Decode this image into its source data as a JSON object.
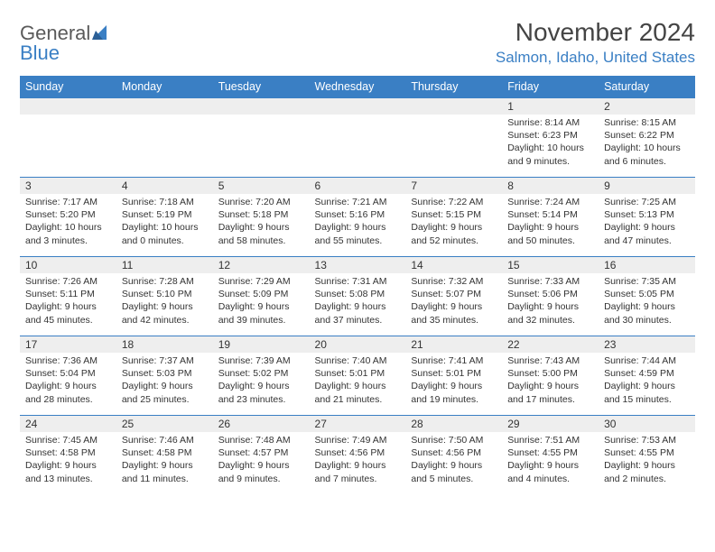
{
  "logo": {
    "word1": "General",
    "word2": "Blue"
  },
  "title": "November 2024",
  "location": "Salmon, Idaho, United States",
  "colors": {
    "header_bg": "#3a7fc4",
    "header_text": "#ffffff",
    "daynum_bg": "#eeeeee",
    "row_border": "#3a7fc4",
    "location_color": "#3a7fc4",
    "text": "#333333",
    "page_bg": "#ffffff"
  },
  "typography": {
    "title_fontsize": 28,
    "location_fontsize": 17,
    "dayheader_fontsize": 12.5,
    "daynum_fontsize": 12,
    "body_fontsize": 10.5
  },
  "day_headers": [
    "Sunday",
    "Monday",
    "Tuesday",
    "Wednesday",
    "Thursday",
    "Friday",
    "Saturday"
  ],
  "weeks": [
    [
      {
        "num": "",
        "sunrise": "",
        "sunset": "",
        "daylight": ""
      },
      {
        "num": "",
        "sunrise": "",
        "sunset": "",
        "daylight": ""
      },
      {
        "num": "",
        "sunrise": "",
        "sunset": "",
        "daylight": ""
      },
      {
        "num": "",
        "sunrise": "",
        "sunset": "",
        "daylight": ""
      },
      {
        "num": "",
        "sunrise": "",
        "sunset": "",
        "daylight": ""
      },
      {
        "num": "1",
        "sunrise": "Sunrise: 8:14 AM",
        "sunset": "Sunset: 6:23 PM",
        "daylight": "Daylight: 10 hours and 9 minutes."
      },
      {
        "num": "2",
        "sunrise": "Sunrise: 8:15 AM",
        "sunset": "Sunset: 6:22 PM",
        "daylight": "Daylight: 10 hours and 6 minutes."
      }
    ],
    [
      {
        "num": "3",
        "sunrise": "Sunrise: 7:17 AM",
        "sunset": "Sunset: 5:20 PM",
        "daylight": "Daylight: 10 hours and 3 minutes."
      },
      {
        "num": "4",
        "sunrise": "Sunrise: 7:18 AM",
        "sunset": "Sunset: 5:19 PM",
        "daylight": "Daylight: 10 hours and 0 minutes."
      },
      {
        "num": "5",
        "sunrise": "Sunrise: 7:20 AM",
        "sunset": "Sunset: 5:18 PM",
        "daylight": "Daylight: 9 hours and 58 minutes."
      },
      {
        "num": "6",
        "sunrise": "Sunrise: 7:21 AM",
        "sunset": "Sunset: 5:16 PM",
        "daylight": "Daylight: 9 hours and 55 minutes."
      },
      {
        "num": "7",
        "sunrise": "Sunrise: 7:22 AM",
        "sunset": "Sunset: 5:15 PM",
        "daylight": "Daylight: 9 hours and 52 minutes."
      },
      {
        "num": "8",
        "sunrise": "Sunrise: 7:24 AM",
        "sunset": "Sunset: 5:14 PM",
        "daylight": "Daylight: 9 hours and 50 minutes."
      },
      {
        "num": "9",
        "sunrise": "Sunrise: 7:25 AM",
        "sunset": "Sunset: 5:13 PM",
        "daylight": "Daylight: 9 hours and 47 minutes."
      }
    ],
    [
      {
        "num": "10",
        "sunrise": "Sunrise: 7:26 AM",
        "sunset": "Sunset: 5:11 PM",
        "daylight": "Daylight: 9 hours and 45 minutes."
      },
      {
        "num": "11",
        "sunrise": "Sunrise: 7:28 AM",
        "sunset": "Sunset: 5:10 PM",
        "daylight": "Daylight: 9 hours and 42 minutes."
      },
      {
        "num": "12",
        "sunrise": "Sunrise: 7:29 AM",
        "sunset": "Sunset: 5:09 PM",
        "daylight": "Daylight: 9 hours and 39 minutes."
      },
      {
        "num": "13",
        "sunrise": "Sunrise: 7:31 AM",
        "sunset": "Sunset: 5:08 PM",
        "daylight": "Daylight: 9 hours and 37 minutes."
      },
      {
        "num": "14",
        "sunrise": "Sunrise: 7:32 AM",
        "sunset": "Sunset: 5:07 PM",
        "daylight": "Daylight: 9 hours and 35 minutes."
      },
      {
        "num": "15",
        "sunrise": "Sunrise: 7:33 AM",
        "sunset": "Sunset: 5:06 PM",
        "daylight": "Daylight: 9 hours and 32 minutes."
      },
      {
        "num": "16",
        "sunrise": "Sunrise: 7:35 AM",
        "sunset": "Sunset: 5:05 PM",
        "daylight": "Daylight: 9 hours and 30 minutes."
      }
    ],
    [
      {
        "num": "17",
        "sunrise": "Sunrise: 7:36 AM",
        "sunset": "Sunset: 5:04 PM",
        "daylight": "Daylight: 9 hours and 28 minutes."
      },
      {
        "num": "18",
        "sunrise": "Sunrise: 7:37 AM",
        "sunset": "Sunset: 5:03 PM",
        "daylight": "Daylight: 9 hours and 25 minutes."
      },
      {
        "num": "19",
        "sunrise": "Sunrise: 7:39 AM",
        "sunset": "Sunset: 5:02 PM",
        "daylight": "Daylight: 9 hours and 23 minutes."
      },
      {
        "num": "20",
        "sunrise": "Sunrise: 7:40 AM",
        "sunset": "Sunset: 5:01 PM",
        "daylight": "Daylight: 9 hours and 21 minutes."
      },
      {
        "num": "21",
        "sunrise": "Sunrise: 7:41 AM",
        "sunset": "Sunset: 5:01 PM",
        "daylight": "Daylight: 9 hours and 19 minutes."
      },
      {
        "num": "22",
        "sunrise": "Sunrise: 7:43 AM",
        "sunset": "Sunset: 5:00 PM",
        "daylight": "Daylight: 9 hours and 17 minutes."
      },
      {
        "num": "23",
        "sunrise": "Sunrise: 7:44 AM",
        "sunset": "Sunset: 4:59 PM",
        "daylight": "Daylight: 9 hours and 15 minutes."
      }
    ],
    [
      {
        "num": "24",
        "sunrise": "Sunrise: 7:45 AM",
        "sunset": "Sunset: 4:58 PM",
        "daylight": "Daylight: 9 hours and 13 minutes."
      },
      {
        "num": "25",
        "sunrise": "Sunrise: 7:46 AM",
        "sunset": "Sunset: 4:58 PM",
        "daylight": "Daylight: 9 hours and 11 minutes."
      },
      {
        "num": "26",
        "sunrise": "Sunrise: 7:48 AM",
        "sunset": "Sunset: 4:57 PM",
        "daylight": "Daylight: 9 hours and 9 minutes."
      },
      {
        "num": "27",
        "sunrise": "Sunrise: 7:49 AM",
        "sunset": "Sunset: 4:56 PM",
        "daylight": "Daylight: 9 hours and 7 minutes."
      },
      {
        "num": "28",
        "sunrise": "Sunrise: 7:50 AM",
        "sunset": "Sunset: 4:56 PM",
        "daylight": "Daylight: 9 hours and 5 minutes."
      },
      {
        "num": "29",
        "sunrise": "Sunrise: 7:51 AM",
        "sunset": "Sunset: 4:55 PM",
        "daylight": "Daylight: 9 hours and 4 minutes."
      },
      {
        "num": "30",
        "sunrise": "Sunrise: 7:53 AM",
        "sunset": "Sunset: 4:55 PM",
        "daylight": "Daylight: 9 hours and 2 minutes."
      }
    ]
  ]
}
